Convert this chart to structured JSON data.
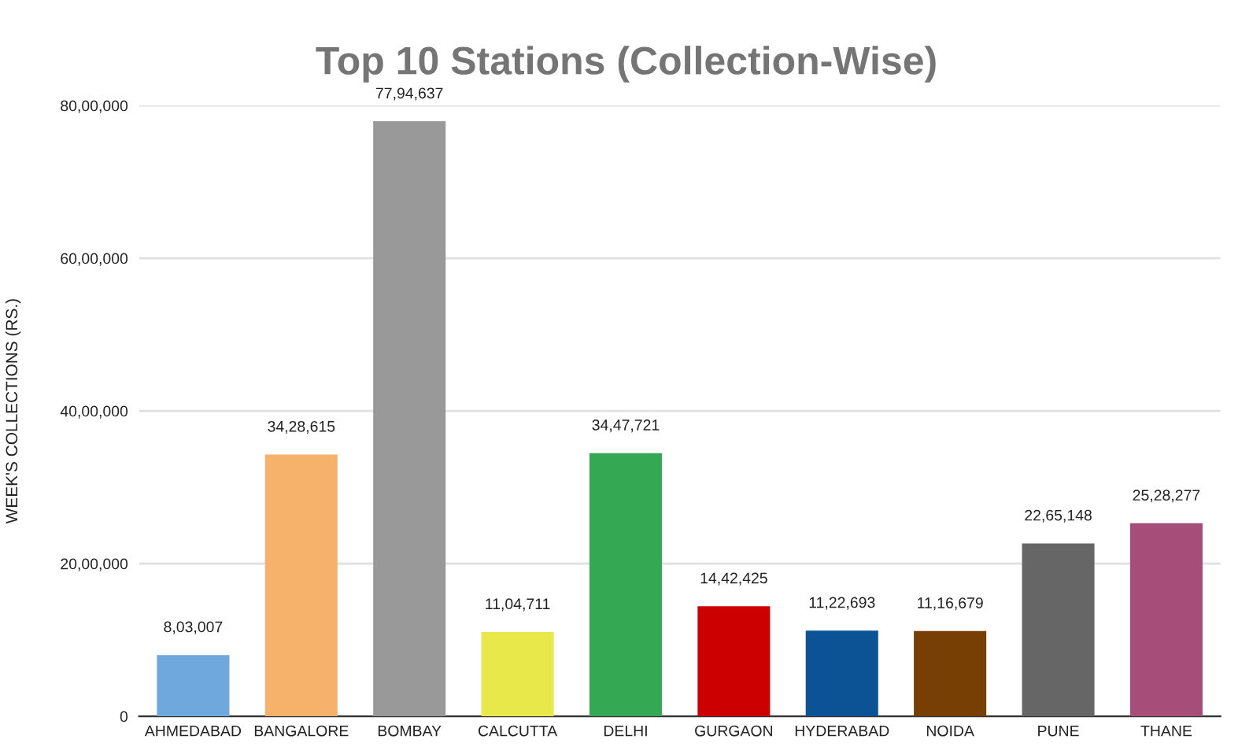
{
  "chart_data": {
    "type": "bar",
    "title": "Top 10 Stations (Collection-Wise)",
    "ylabel": "WEEK'S COLLECTIONS (RS.)",
    "categories": [
      "AHMEDABAD",
      "BANGALORE",
      "BOMBAY",
      "CALCUTTA",
      "DELHI",
      "GURGAON",
      "HYDERABAD",
      "NOIDA",
      "PUNE",
      "THANE"
    ],
    "values": [
      803007,
      3428615,
      7794637,
      1104711,
      3447721,
      1442425,
      1122693,
      1116679,
      2265148,
      2528277
    ],
    "value_labels": [
      "8,03,007",
      "34,28,615",
      "77,94,637",
      "11,04,711",
      "34,47,721",
      "14,42,425",
      "11,22,693",
      "11,16,679",
      "22,65,148",
      "25,28,277"
    ],
    "colors": [
      "#6fa8dc",
      "#f6b26b",
      "#999999",
      "#e8e84a",
      "#34a853",
      "#cc0000",
      "#0b5394",
      "#783f04",
      "#666666",
      "#a64d79"
    ],
    "ylim": [
      0,
      8000000
    ],
    "yticks": [
      0,
      {
        "value": 2000000,
        "label": "20,00,000"
      },
      {
        "value": 4000000,
        "label": "40,00,000"
      },
      {
        "value": 6000000,
        "label": "60,00,000"
      },
      {
        "value": 8000000,
        "label": "80,00,000"
      }
    ],
    "grid": "y",
    "legend": false
  }
}
